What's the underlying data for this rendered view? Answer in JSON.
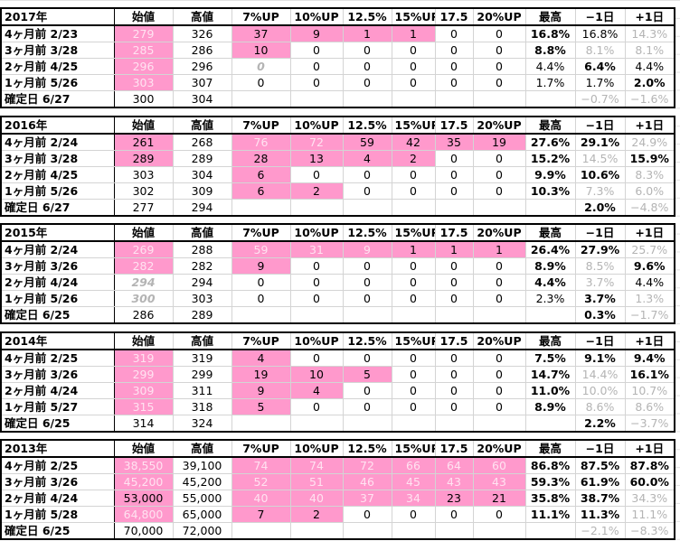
{
  "tables": [
    {
      "header": [
        "2017年",
        "始値",
        "高値",
        "7%UP",
        "10%UP",
        "12.5%",
        "15%UP",
        "17.5",
        "20%UP",
        "最高",
        "−1日",
        "+1日"
      ],
      "rows": [
        [
          "4ヶ月前  2/23",
          "279",
          "326",
          "37",
          "9",
          "1",
          "1",
          "0",
          "0",
          "16.8%",
          "16.8%",
          "14.3%"
        ],
        [
          "3ヶ月前  3/28",
          "285",
          "286",
          "10",
          "0",
          "0",
          "0",
          "0",
          "0",
          "8.8%",
          "8.1%",
          "8.1%"
        ],
        [
          "2ヶ月前  4/25",
          "296",
          "296",
          "0",
          "0",
          "0",
          "0",
          "0",
          "0",
          "4.4%",
          "6.4%",
          "4.4%"
        ],
        [
          "1ヶ月前  5/26",
          "303",
          "307",
          "0",
          "0",
          "0",
          "0",
          "0",
          "0",
          "1.7%",
          "1.7%",
          "2.0%"
        ]
      ],
      "confirm": {
        "label": "確定日  6/27",
        "start": "300",
        "high": "304",
        "minus1": "−0.7%",
        "plus1": "−1.6%"
      }
    },
    {
      "header": [
        "2016年",
        "始値",
        "高値",
        "7%UP",
        "10%UP",
        "12.5%",
        "15%UP",
        "17.5",
        "20%UP",
        "最高",
        "−1日",
        "+1日"
      ],
      "rows": [
        [
          "4ヶ月前  2/24",
          "261",
          "268",
          "76",
          "72",
          "59",
          "42",
          "35",
          "19",
          "27.6%",
          "29.1%",
          "24.9%"
        ],
        [
          "3ヶ月前  3/28",
          "289",
          "289",
          "28",
          "13",
          "4",
          "2",
          "0",
          "0",
          "15.2%",
          "14.5%",
          "15.9%"
        ],
        [
          "2ヶ月前  4/25",
          "303",
          "304",
          "6",
          "0",
          "0",
          "0",
          "0",
          "0",
          "9.9%",
          "10.6%",
          "8.3%"
        ],
        [
          "1ヶ月前  5/26",
          "302",
          "309",
          "6",
          "2",
          "0",
          "0",
          "0",
          "0",
          "10.3%",
          "7.3%",
          "6.0%"
        ]
      ],
      "confirm": {
        "label": "確定日  6/27",
        "start": "277",
        "high": "294",
        "minus1": "2.0%",
        "plus1": "−4.8%"
      }
    },
    {
      "header": [
        "2015年",
        "始値",
        "高値",
        "7%UP",
        "10%UP",
        "12.5%",
        "15%UP",
        "17.5",
        "20%UP",
        "最高",
        "−1日",
        "+1日"
      ],
      "rows": [
        [
          "4ヶ月前  2/24",
          "269",
          "288",
          "59",
          "31",
          "9",
          "1",
          "1",
          "1",
          "26.4%",
          "27.9%",
          "25.7%"
        ],
        [
          "3ヶ月前  3/26",
          "282",
          "282",
          "9",
          "0",
          "0",
          "0",
          "0",
          "0",
          "8.9%",
          "8.5%",
          "9.6%"
        ],
        [
          "2ヶ月前  4/24",
          "294",
          "294",
          "0",
          "0",
          "0",
          "0",
          "0",
          "0",
          "4.4%",
          "3.7%",
          "4.4%"
        ],
        [
          "1ヶ月前  5/26",
          "300",
          "303",
          "0",
          "0",
          "0",
          "0",
          "0",
          "0",
          "2.3%",
          "3.7%",
          "1.3%"
        ]
      ],
      "confirm": {
        "label": "確定日  6/25",
        "start": "286",
        "high": "289",
        "minus1": "0.3%",
        "plus1": "−1.7%"
      }
    },
    {
      "header": [
        "2014年",
        "始値",
        "高値",
        "7%UP",
        "10%UP",
        "12.5%",
        "15%UP",
        "17.5",
        "20%UP",
        "最高",
        "−1日",
        "+1日"
      ],
      "rows": [
        [
          "4ヶ月前  2/25",
          "319",
          "319",
          "4",
          "0",
          "0",
          "0",
          "0",
          "0",
          "7.5%",
          "9.1%",
          "9.4%"
        ],
        [
          "3ヶ月前  3/26",
          "299",
          "299",
          "19",
          "10",
          "5",
          "0",
          "0",
          "0",
          "14.7%",
          "14.4%",
          "16.1%"
        ],
        [
          "2ヶ月前  4/24",
          "309",
          "311",
          "9",
          "4",
          "0",
          "0",
          "0",
          "0",
          "11.0%",
          "10.0%",
          "10.7%"
        ],
        [
          "1ヶ月前  5/27",
          "315",
          "318",
          "5",
          "0",
          "0",
          "0",
          "0",
          "0",
          "8.9%",
          "8.6%",
          "8.6%"
        ]
      ],
      "confirm": {
        "label": "確定日  6/25",
        "start": "314",
        "high": "324",
        "minus1": "2.2%",
        "plus1": "−3.7%"
      }
    },
    {
      "header": [
        "2013年",
        "始値",
        "高値",
        "7%UP",
        "10%UP",
        "12.5%",
        "15%UP",
        "17.5",
        "20%UP",
        "最高",
        "−1日",
        "+1日"
      ],
      "rows": [
        [
          "4ヶ月前  2/25",
          "38,550",
          "39,100",
          "74",
          "74",
          "72",
          "66",
          "64",
          "60",
          "86.8%",
          "87.5%",
          "87.8%"
        ],
        [
          "3ヶ月前  3/26",
          "45,200",
          "45,200",
          "52",
          "51",
          "46",
          "45",
          "43",
          "43",
          "59.3%",
          "61.9%",
          "60.0%"
        ],
        [
          "2ヶ月前  4/24",
          "53,000",
          "55,000",
          "40",
          "40",
          "37",
          "34",
          "23",
          "21",
          "35.8%",
          "38.7%",
          "34.3%"
        ],
        [
          "1ヶ月前  5/28",
          "64,800",
          "65,000",
          "7",
          "2",
          "0",
          "0",
          "0",
          "0",
          "11.1%",
          "11.3%",
          "11.1%"
        ]
      ],
      "confirm": {
        "label": "確定日  6/25",
        "start": "70,000",
        "high": "72,000",
        "minus1": "−2.1%",
        "plus1": "−8.3%"
      }
    }
  ]
}
